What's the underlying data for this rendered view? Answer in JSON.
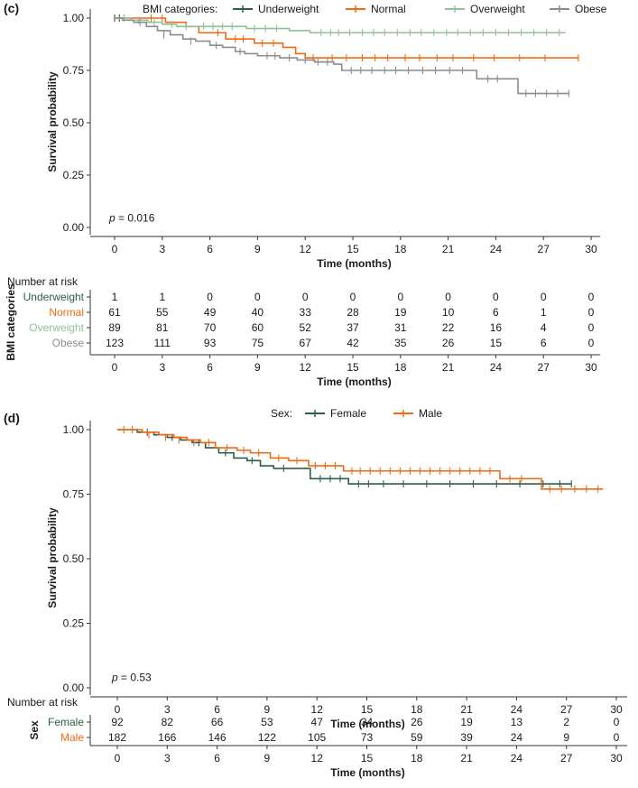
{
  "chart_data": [
    {
      "type": "line",
      "panel_label": "(c)",
      "xlabel": "Time (months)",
      "ylabel": "Survival probability",
      "xlim": [
        0,
        30
      ],
      "ylim": [
        0,
        1
      ],
      "xticks": [
        0,
        3,
        6,
        9,
        12,
        15,
        18,
        21,
        24,
        27,
        30
      ],
      "yticks": [
        "0.00",
        "0.25",
        "0.50",
        "0.75",
        "1.00"
      ],
      "grid": false,
      "legend_title": "BMI categories:",
      "legend_position": "top",
      "annotation": {
        "prefix": "p",
        "text": " = 0.016",
        "x": 0,
        "y": 0.02
      },
      "series": [
        {
          "name": "Underweight",
          "color": "#2e5e45",
          "x": [
            0
          ],
          "y": [
            1.0
          ],
          "censor_x": [
            0,
            0.3
          ],
          "censor_y": [
            1.0,
            1.0
          ]
        },
        {
          "name": "Normal",
          "color": "#f06a14",
          "x": [
            0,
            3.2,
            4.5,
            5.3,
            7.0,
            8.8,
            10.6,
            11.4,
            12.0,
            29.2
          ],
          "y": [
            1.0,
            0.98,
            0.96,
            0.93,
            0.9,
            0.88,
            0.86,
            0.83,
            0.81,
            0.81
          ],
          "censor_x": [
            2.3,
            3.0,
            6.5,
            7.6,
            8.1,
            9.3,
            10.0,
            12.5,
            13.7,
            14.6,
            15.6,
            16.4,
            17.2,
            18.3,
            19.2,
            20.3,
            21.3,
            22.6,
            23.9,
            25.5,
            27.1,
            29.2
          ],
          "censor_y": [
            1.0,
            1.0,
            0.93,
            0.9,
            0.9,
            0.88,
            0.88,
            0.81,
            0.81,
            0.81,
            0.81,
            0.81,
            0.81,
            0.81,
            0.81,
            0.81,
            0.81,
            0.81,
            0.81,
            0.81,
            0.81,
            0.81
          ]
        },
        {
          "name": "Overweight",
          "color": "#8fc09a",
          "x": [
            0,
            1.0,
            2.1,
            3.0,
            3.9,
            5.2,
            8.3,
            11.0,
            12.3,
            28.4
          ],
          "y": [
            1.0,
            0.99,
            0.98,
            0.97,
            0.96,
            0.96,
            0.95,
            0.94,
            0.93,
            0.93
          ],
          "censor_x": [
            0.6,
            1.5,
            2.5,
            3.6,
            4.5,
            5.6,
            6.2,
            6.8,
            7.4,
            8.8,
            9.5,
            10.2,
            13.0,
            13.6,
            14.1,
            14.8,
            15.6,
            16.3,
            17.0,
            17.8,
            18.6,
            19.3,
            20.1,
            20.9,
            21.6,
            22.4,
            23.2,
            24.0,
            24.8,
            25.6,
            26.4,
            27.2,
            28.0
          ],
          "censor_y": [
            1.0,
            0.99,
            0.98,
            0.97,
            0.96,
            0.96,
            0.96,
            0.96,
            0.96,
            0.95,
            0.95,
            0.95,
            0.93,
            0.93,
            0.93,
            0.93,
            0.93,
            0.93,
            0.93,
            0.93,
            0.93,
            0.93,
            0.93,
            0.93,
            0.93,
            0.93,
            0.93,
            0.93,
            0.93,
            0.93,
            0.93,
            0.93,
            0.93
          ]
        },
        {
          "name": "Obese",
          "color": "#8c8c8c",
          "x": [
            0,
            0.5,
            1.2,
            2.0,
            2.7,
            3.5,
            4.3,
            5.1,
            6.0,
            6.8,
            7.6,
            8.2,
            9.0,
            10.4,
            11.5,
            12.6,
            13.8,
            14.3,
            22.8,
            25.4,
            28.6
          ],
          "y": [
            1.0,
            0.99,
            0.98,
            0.96,
            0.94,
            0.92,
            0.9,
            0.89,
            0.87,
            0.86,
            0.84,
            0.83,
            0.82,
            0.81,
            0.8,
            0.79,
            0.78,
            0.75,
            0.71,
            0.64,
            0.64
          ],
          "censor_x": [
            1.6,
            3.1,
            4.8,
            6.4,
            7.9,
            9.6,
            10.1,
            11.0,
            12.0,
            12.8,
            13.4,
            14.9,
            15.5,
            16.2,
            17.0,
            17.7,
            18.5,
            19.4,
            20.2,
            21.1,
            21.9,
            23.5,
            24.1,
            25.9,
            26.5,
            27.2,
            27.9,
            28.6
          ],
          "censor_y": [
            0.98,
            0.92,
            0.89,
            0.87,
            0.84,
            0.82,
            0.82,
            0.81,
            0.8,
            0.79,
            0.79,
            0.75,
            0.75,
            0.75,
            0.75,
            0.75,
            0.75,
            0.75,
            0.75,
            0.75,
            0.75,
            0.71,
            0.71,
            0.64,
            0.64,
            0.64,
            0.64,
            0.64
          ]
        }
      ],
      "risk_table": {
        "title": "Number at risk",
        "ylabel": "BMI categories",
        "xlabel": "Time (months)",
        "xticks": [
          0,
          3,
          6,
          9,
          12,
          15,
          18,
          21,
          24,
          27,
          30
        ],
        "rows": [
          {
            "label": "Underweight",
            "color": "#2e5e45",
            "values": [
              1,
              1,
              0,
              0,
              0,
              0,
              0,
              0,
              0,
              0,
              0
            ]
          },
          {
            "label": "Normal",
            "color": "#f06a14",
            "values": [
              61,
              55,
              49,
              40,
              33,
              28,
              19,
              10,
              6,
              1,
              0
            ]
          },
          {
            "label": "Overweight",
            "color": "#8fc09a",
            "values": [
              89,
              81,
              70,
              60,
              52,
              37,
              31,
              22,
              16,
              4,
              0
            ]
          },
          {
            "label": "Obese",
            "color": "#8c8c8c",
            "values": [
              123,
              111,
              93,
              75,
              67,
              42,
              35,
              26,
              15,
              6,
              0
            ]
          }
        ]
      }
    },
    {
      "type": "line",
      "panel_label": "(d)",
      "xlabel": "Time (months)",
      "ylabel": "Survival probability",
      "xlim": [
        0,
        30
      ],
      "ylim": [
        0,
        1
      ],
      "xticks": [
        0,
        3,
        6,
        9,
        12,
        15,
        18,
        21,
        24,
        27,
        30
      ],
      "yticks": [
        "0.00",
        "0.25",
        "0.50",
        "0.75",
        "1.00"
      ],
      "grid": false,
      "legend_title": "Sex:",
      "legend_position": "top",
      "annotation": {
        "prefix": "p",
        "text": " = 0.53",
        "x": 0,
        "y": 0.02
      },
      "series": [
        {
          "name": "Female",
          "color": "#2e5e45",
          "x": [
            0,
            1.2,
            2.2,
            3.0,
            3.8,
            4.5,
            5.3,
            6.1,
            7.0,
            7.8,
            8.6,
            9.4,
            11.6,
            13.9,
            27.3
          ],
          "y": [
            1.0,
            0.99,
            0.98,
            0.97,
            0.96,
            0.95,
            0.93,
            0.91,
            0.89,
            0.88,
            0.86,
            0.85,
            0.81,
            0.79,
            0.79
          ],
          "censor_x": [
            1.8,
            3.3,
            4.9,
            6.5,
            8.1,
            10.0,
            12.2,
            12.8,
            13.4,
            14.5,
            15.1,
            16.0,
            17.2,
            18.6,
            20.0,
            21.4,
            22.8,
            24.2,
            25.6,
            26.6,
            27.3
          ],
          "censor_y": [
            0.99,
            0.97,
            0.95,
            0.91,
            0.88,
            0.85,
            0.81,
            0.81,
            0.81,
            0.79,
            0.79,
            0.79,
            0.79,
            0.79,
            0.79,
            0.79,
            0.79,
            0.79,
            0.79,
            0.79,
            0.79
          ]
        },
        {
          "name": "Male",
          "color": "#f06a14",
          "x": [
            0,
            1.5,
            2.5,
            3.4,
            4.2,
            5.0,
            5.9,
            7.2,
            8.0,
            9.2,
            10.3,
            11.5,
            13.6,
            23.0,
            25.5,
            29.2
          ],
          "y": [
            1.0,
            0.99,
            0.98,
            0.97,
            0.96,
            0.95,
            0.93,
            0.92,
            0.91,
            0.89,
            0.88,
            0.86,
            0.84,
            0.81,
            0.77,
            0.77
          ],
          "censor_x": [
            0.4,
            0.9,
            1.9,
            2.9,
            3.7,
            4.6,
            5.5,
            6.6,
            7.6,
            8.5,
            9.7,
            10.8,
            11.9,
            12.5,
            13.1,
            14.1,
            14.6,
            15.2,
            15.8,
            16.4,
            17.0,
            17.6,
            18.2,
            18.8,
            19.4,
            20.0,
            20.6,
            21.2,
            21.8,
            22.4,
            23.6,
            24.3,
            26.0,
            26.7,
            27.5,
            28.2,
            28.9
          ],
          "censor_y": [
            1.0,
            1.0,
            0.98,
            0.97,
            0.96,
            0.95,
            0.95,
            0.93,
            0.92,
            0.91,
            0.89,
            0.88,
            0.86,
            0.86,
            0.86,
            0.84,
            0.84,
            0.84,
            0.84,
            0.84,
            0.84,
            0.84,
            0.84,
            0.84,
            0.84,
            0.84,
            0.84,
            0.84,
            0.84,
            0.84,
            0.81,
            0.81,
            0.77,
            0.77,
            0.77,
            0.77,
            0.77
          ]
        }
      ],
      "risk_table": {
        "title": "Number at risk",
        "ylabel": "Sex",
        "xlabel": "Time (months)",
        "xticks": [
          0,
          3,
          6,
          9,
          12,
          15,
          18,
          21,
          24,
          27,
          30
        ],
        "rows": [
          {
            "label": "Female",
            "color": "#2e5e45",
            "values": [
              92,
              82,
              66,
              53,
              47,
              34,
              26,
              19,
              13,
              2,
              0
            ]
          },
          {
            "label": "Male",
            "color": "#f06a14",
            "values": [
              182,
              166,
              146,
              122,
              105,
              73,
              59,
              39,
              24,
              9,
              0
            ]
          }
        ]
      }
    }
  ]
}
